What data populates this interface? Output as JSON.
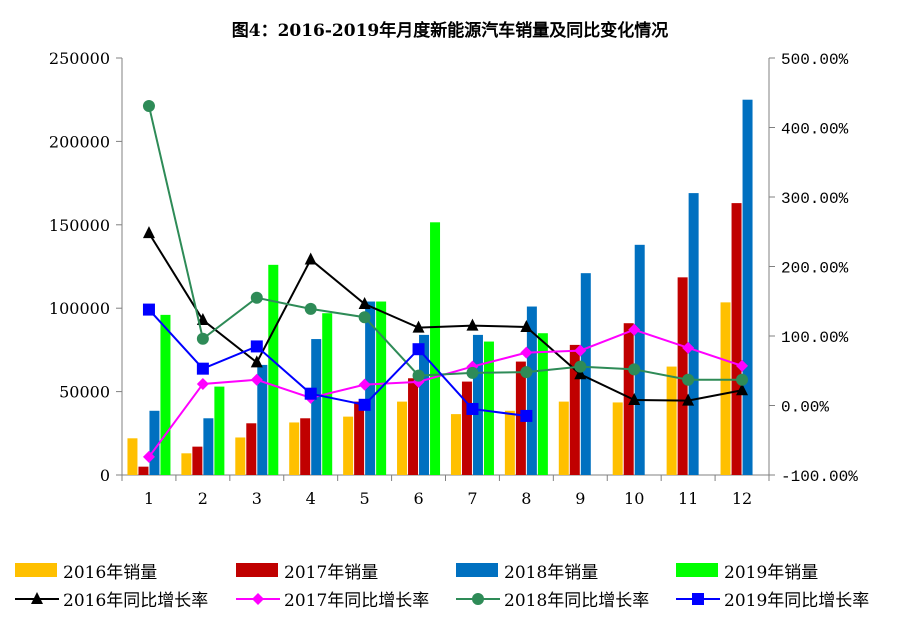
{
  "chart_data": {
    "type": "bar",
    "title": "图4：2016-2019年月度新能源汽车销量及同比变化情况",
    "categories": [
      "1",
      "2",
      "3",
      "4",
      "5",
      "6",
      "7",
      "8",
      "9",
      "10",
      "11",
      "12"
    ],
    "ylim": [
      0,
      250000
    ],
    "yticks": [
      "250000",
      "200000",
      "150000",
      "100000",
      "50000",
      "0"
    ],
    "y2lim": [
      -100,
      500
    ],
    "y2ticks": [
      "500.00%",
      "400.00%",
      "300.00%",
      "200.00%",
      "100.00%",
      "0.00%",
      "-100.00%"
    ],
    "bar_series": [
      {
        "name": "2016年销量",
        "color": "#ffc000",
        "values": [
          22000,
          13000,
          22500,
          31500,
          35000,
          44000,
          36500,
          38500,
          44000,
          43500,
          65000,
          103500
        ]
      },
      {
        "name": "2017年销量",
        "color": "#c00000",
        "values": [
          5000,
          17000,
          31000,
          34000,
          44000,
          58000,
          56000,
          68000,
          78000,
          91000,
          118500,
          163000
        ]
      },
      {
        "name": "2018年销量",
        "color": "#0070c0",
        "values": [
          38500,
          34000,
          66000,
          81500,
          104000,
          84000,
          84000,
          101000,
          121000,
          138000,
          169000,
          225000
        ]
      },
      {
        "name": "2019年销量",
        "color": "#00ff00",
        "values": [
          96000,
          53000,
          126000,
          97000,
          104000,
          151500,
          80000,
          85000,
          null,
          null,
          null,
          null
        ]
      }
    ],
    "line_series": [
      {
        "name": "2016年同比增长率",
        "color": "#000000",
        "marker": "triangle",
        "values": [
          248,
          123,
          62,
          210,
          146,
          112,
          115,
          113,
          45,
          8,
          7,
          22
        ]
      },
      {
        "name": "2017年同比增长率",
        "color": "#ff00ff",
        "marker": "diamond",
        "values": [
          -74,
          31,
          37,
          11,
          30,
          34,
          56,
          76,
          79,
          109,
          83,
          57
        ]
      },
      {
        "name": "2018年同比增长率",
        "color": "#2e8b57",
        "marker": "circle",
        "values": [
          431,
          96,
          155,
          139,
          127,
          43,
          47,
          48,
          56,
          52,
          37,
          37
        ]
      },
      {
        "name": "2019年同比增长率",
        "color": "#0000ff",
        "marker": "square",
        "values": [
          138,
          53,
          85,
          17,
          1,
          81,
          -5,
          -15,
          null,
          null,
          null,
          null
        ]
      }
    ],
    "grid": false,
    "legend_position": "bottom"
  }
}
